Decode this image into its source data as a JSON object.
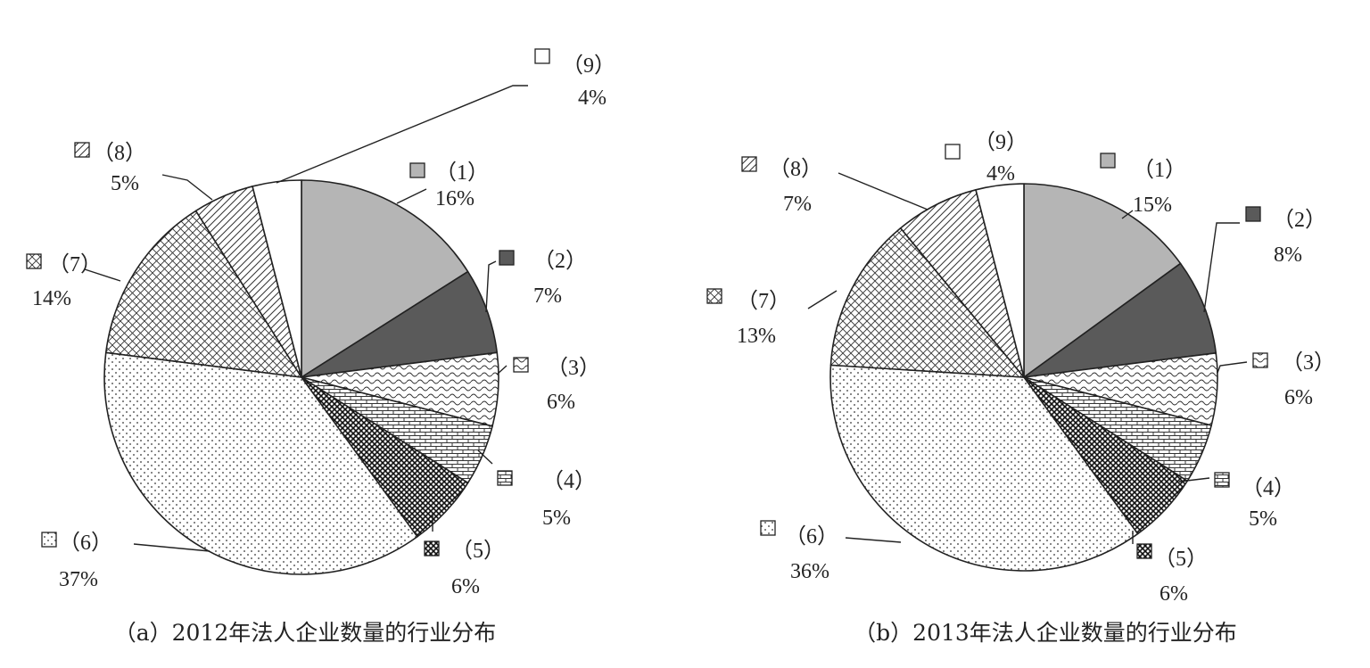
{
  "chart_data": [
    {
      "type": "pie",
      "title": "（a）2012年法人企业数量的行业分布",
      "slices": [
        {
          "label": "（1）",
          "value": 16,
          "text": "16%",
          "pattern": "gray"
        },
        {
          "label": "（2）",
          "value": 7,
          "text": "7%",
          "pattern": "dark"
        },
        {
          "label": "（3）",
          "value": 6,
          "text": "6%",
          "pattern": "waves"
        },
        {
          "label": "（4）",
          "value": 5,
          "text": "5%",
          "pattern": "brick"
        },
        {
          "label": "（5）",
          "value": 6,
          "text": "6%",
          "pattern": "dense"
        },
        {
          "label": "（6）",
          "value": 37,
          "text": "37%",
          "pattern": "dots"
        },
        {
          "label": "（7）",
          "value": 14,
          "text": "14%",
          "pattern": "cross"
        },
        {
          "label": "（8）",
          "value": 5,
          "text": "5%",
          "pattern": "diag"
        },
        {
          "label": "（9）",
          "value": 4,
          "text": "4%",
          "pattern": "white"
        }
      ]
    },
    {
      "type": "pie",
      "title": "（b）2013年法人企业数量的行业分布",
      "slices": [
        {
          "label": "（1）",
          "value": 15,
          "text": "15%",
          "pattern": "gray"
        },
        {
          "label": "（2）",
          "value": 8,
          "text": "8%",
          "pattern": "dark"
        },
        {
          "label": "（3）",
          "value": 6,
          "text": "6%",
          "pattern": "waves"
        },
        {
          "label": "（4）",
          "value": 5,
          "text": "5%",
          "pattern": "brick"
        },
        {
          "label": "（5）",
          "value": 6,
          "text": "6%",
          "pattern": "dense"
        },
        {
          "label": "（6）",
          "value": 36,
          "text": "36%",
          "pattern": "dots"
        },
        {
          "label": "（7）",
          "value": 13,
          "text": "13%",
          "pattern": "cross"
        },
        {
          "label": "（8）",
          "value": 7,
          "text": "7%",
          "pattern": "diag"
        },
        {
          "label": "（9）",
          "value": 4,
          "text": "4%",
          "pattern": "white"
        }
      ]
    }
  ],
  "colors": {
    "gray": "#b5b5b5",
    "dark": "#5a5a5a",
    "stroke": "#222222"
  }
}
